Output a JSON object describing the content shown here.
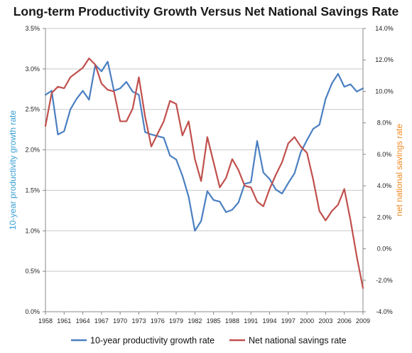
{
  "chart_data": {
    "type": "line",
    "title": "Long-term Productivity Growth Versus Net National Savings Rate",
    "y_left_label": "10-year productivity growth rate",
    "y_right_label": "net national savings rate",
    "y_left_range": [
      0,
      3.5
    ],
    "y_left_ticks": [
      "0.0%",
      "0.5%",
      "1.0%",
      "1.5%",
      "2.0%",
      "2.5%",
      "3.0%",
      "3.5%"
    ],
    "y_right_range": [
      -4,
      14
    ],
    "y_right_ticks": [
      "-4.0%",
      "-2.0%",
      "0.0%",
      "2.0%",
      "4.0%",
      "6.0%",
      "8.0%",
      "10.0%",
      "12.0%",
      "14.0%"
    ],
    "x_range": [
      1958,
      2009
    ],
    "x_tick_labels": [
      "1958",
      "1961",
      "1964",
      "1967",
      "1970",
      "1973",
      "1976",
      "1979",
      "1982",
      "1985",
      "1988",
      "1991",
      "1994",
      "1997",
      "2000",
      "2003",
      "2006",
      "2009"
    ],
    "grid": "horizontal",
    "legend_position": "bottom",
    "series": [
      {
        "name": "10-year productivity growth rate",
        "axis": "left",
        "color": "#4a7fc1",
        "x": [
          1958,
          1959,
          1960,
          1961,
          1962,
          1963,
          1964,
          1965,
          1966,
          1967,
          1968,
          1969,
          1970,
          1971,
          1972,
          1973,
          1974,
          1975,
          1976,
          1977,
          1978,
          1979,
          1980,
          1981,
          1982,
          1983,
          1984,
          1985,
          1986,
          1987,
          1988,
          1989,
          1990,
          1991,
          1992,
          1993,
          1994,
          1995,
          1996,
          1997,
          1998,
          1999,
          2000,
          2001,
          2002,
          2003,
          2004,
          2005,
          2006,
          2007,
          2008,
          2009
        ],
        "values": [
          2.68,
          2.73,
          2.19,
          2.23,
          2.5,
          2.63,
          2.73,
          2.62,
          3.05,
          2.97,
          3.09,
          2.73,
          2.76,
          2.84,
          2.72,
          2.68,
          2.22,
          2.19,
          2.17,
          2.15,
          1.93,
          1.88,
          1.68,
          1.42,
          1.0,
          1.12,
          1.49,
          1.38,
          1.36,
          1.23,
          1.26,
          1.35,
          1.58,
          1.6,
          2.11,
          1.72,
          1.64,
          1.51,
          1.46,
          1.59,
          1.71,
          1.97,
          2.12,
          2.26,
          2.31,
          2.63,
          2.82,
          2.94,
          2.78,
          2.81,
          2.72,
          2.76
        ]
      },
      {
        "name": "Net national savings rate",
        "axis": "right",
        "color": "#c0504d",
        "x": [
          1958,
          1959,
          1960,
          1961,
          1962,
          1963,
          1964,
          1965,
          1966,
          1967,
          1968,
          1969,
          1970,
          1971,
          1972,
          1973,
          1974,
          1975,
          1976,
          1977,
          1978,
          1979,
          1980,
          1981,
          1982,
          1983,
          1984,
          1985,
          1986,
          1987,
          1988,
          1989,
          1990,
          1991,
          1992,
          1993,
          1994,
          1995,
          1996,
          1997,
          1998,
          1999,
          2000,
          2001,
          2002,
          2003,
          2004,
          2005,
          2006,
          2007,
          2008,
          2009
        ],
        "values": [
          7.8,
          9.9,
          10.3,
          10.2,
          10.9,
          11.2,
          11.5,
          12.1,
          11.7,
          10.5,
          10.1,
          10.0,
          8.1,
          8.1,
          8.9,
          10.9,
          8.4,
          6.5,
          7.3,
          8.1,
          9.4,
          9.2,
          7.2,
          8.1,
          5.7,
          4.3,
          7.1,
          5.5,
          3.9,
          4.5,
          5.7,
          5.0,
          4.0,
          3.9,
          3.0,
          2.7,
          3.8,
          4.7,
          5.5,
          6.7,
          7.1,
          6.5,
          6.1,
          4.4,
          2.4,
          1.8,
          2.4,
          2.8,
          3.8,
          1.8,
          -0.5,
          -2.5
        ]
      }
    ]
  }
}
